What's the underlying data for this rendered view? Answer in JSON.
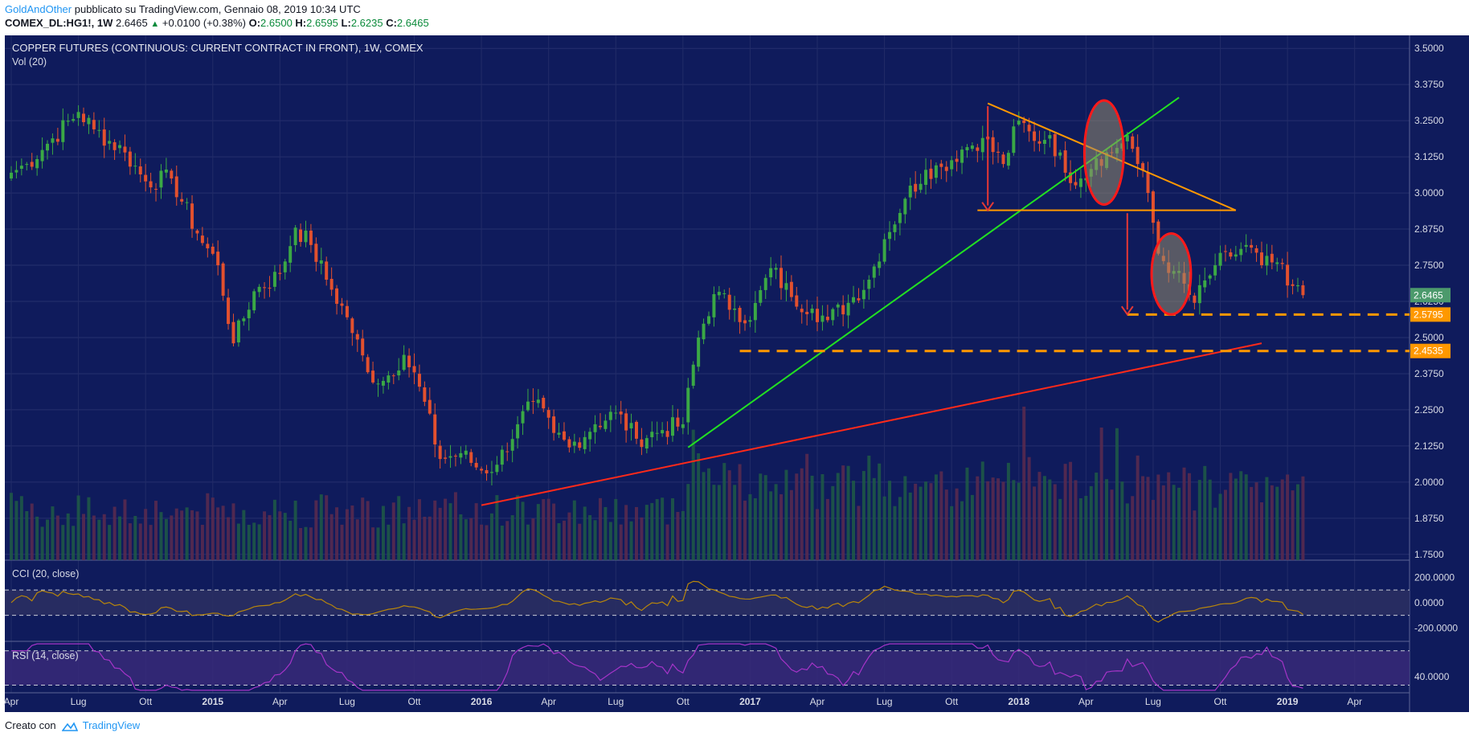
{
  "header": {
    "author": "GoldAndOther",
    "published": "pubblicato su TradingView.com, Gennaio 08, 2019 10:34 UTC",
    "symbol": "COMEX_DL:HG1!, 1W",
    "last": "2.6465",
    "arrow": "▲",
    "change": "+0.0100 (+0.38%)",
    "o_label": "O:",
    "o_value": "2.6500",
    "h_label": "H:",
    "h_value": "2.6595",
    "l_label": "L:",
    "l_value": "2.6235",
    "c_label": "C:",
    "c_value": "2.6465"
  },
  "main_pane": {
    "title": "COPPER FUTURES (CONTINUOUS: CURRENT CONTRACT IN FRONT), 1W, COMEX",
    "volume_label": "Vol (20)"
  },
  "footer": {
    "prefix": "Creato con",
    "brand": "TradingView",
    "logo_icon": "tradingview-logo-icon"
  },
  "colors": {
    "background": "#0f1b5c",
    "up": "#3aa845",
    "down": "#e2502e",
    "support_line": "#ff9800",
    "uptrend_green": "#22e022",
    "uptrend_red": "#ff2a1a",
    "triangle": "#ff9800",
    "cci": "#b8860b",
    "rsi": "#a534c8"
  },
  "chart_data": {
    "type": "candlestick",
    "timeframe": "1W",
    "y_axis": {
      "ticks": [
        "3.5000",
        "3.3750",
        "3.2500",
        "3.1250",
        "3.0000",
        "2.8750",
        "2.7500",
        "2.6250",
        "2.5000",
        "2.3750",
        "2.2500",
        "2.1250",
        "2.0000",
        "1.8750",
        "1.7500"
      ],
      "ylim": [
        1.73,
        3.545
      ]
    },
    "x_axis": {
      "labels": [
        "Apr",
        "Lug",
        "Ott",
        "2015",
        "Apr",
        "Lug",
        "Ott",
        "2016",
        "Apr",
        "Lug",
        "Ott",
        "2017",
        "Apr",
        "Lug",
        "Ott",
        "2018",
        "Apr",
        "Lug",
        "Ott",
        "2019",
        "Apr"
      ],
      "label_weeks": [
        0,
        13,
        26,
        39,
        52,
        65,
        78,
        91,
        104,
        117,
        130,
        143,
        156,
        169,
        182,
        195,
        208,
        221,
        234,
        247,
        260
      ],
      "bold": [
        "2015",
        "2016",
        "2017",
        "2018",
        "2019"
      ],
      "week_range": [
        0,
        270
      ]
    },
    "price_labels": [
      {
        "value": 2.6465,
        "text": "2.6465",
        "color": "#4c9a6c"
      },
      {
        "value": 2.5795,
        "text": "2.5795",
        "color": "#ff9800"
      },
      {
        "value": 2.4535,
        "text": "2.4535",
        "color": "#ff9800"
      }
    ],
    "anchors": [
      [
        0,
        3.07
      ],
      [
        3,
        3.1
      ],
      [
        7,
        3.17
      ],
      [
        13,
        3.28
      ],
      [
        16,
        3.22
      ],
      [
        22,
        3.14
      ],
      [
        26,
        3.04
      ],
      [
        31,
        3.05
      ],
      [
        36,
        2.86
      ],
      [
        40,
        2.75
      ],
      [
        43,
        2.48
      ],
      [
        47,
        2.66
      ],
      [
        52,
        2.72
      ],
      [
        55,
        2.88
      ],
      [
        58,
        2.82
      ],
      [
        61,
        2.7
      ],
      [
        65,
        2.57
      ],
      [
        69,
        2.38
      ],
      [
        72,
        2.35
      ],
      [
        76,
        2.44
      ],
      [
        79,
        2.33
      ],
      [
        83,
        2.08
      ],
      [
        87,
        2.1
      ],
      [
        91,
        2.04
      ],
      [
        94,
        2.06
      ],
      [
        98,
        2.2
      ],
      [
        101,
        2.28
      ],
      [
        105,
        2.17
      ],
      [
        108,
        2.12
      ],
      [
        113,
        2.2
      ],
      [
        117,
        2.24
      ],
      [
        121,
        2.15
      ],
      [
        126,
        2.18
      ],
      [
        130,
        2.2
      ],
      [
        133,
        2.5
      ],
      [
        136,
        2.65
      ],
      [
        140,
        2.6
      ],
      [
        143,
        2.56
      ],
      [
        147,
        2.74
      ],
      [
        151,
        2.64
      ],
      [
        155,
        2.6
      ],
      [
        158,
        2.56
      ],
      [
        162,
        2.62
      ],
      [
        166,
        2.7
      ],
      [
        169,
        2.84
      ],
      [
        173,
        2.98
      ],
      [
        177,
        3.08
      ],
      [
        180,
        3.09
      ],
      [
        184,
        3.15
      ],
      [
        188,
        3.19
      ],
      [
        192,
        3.1
      ],
      [
        195,
        3.25
      ],
      [
        198,
        3.18
      ],
      [
        201,
        3.2
      ],
      [
        204,
        3.07
      ],
      [
        207,
        3.05
      ],
      [
        210,
        3.12
      ],
      [
        213,
        3.14
      ],
      [
        216,
        3.2
      ],
      [
        218,
        3.1
      ],
      [
        220,
        3.0
      ],
      [
        222,
        2.79
      ],
      [
        225,
        2.73
      ],
      [
        229,
        2.62
      ],
      [
        233,
        2.75
      ],
      [
        236,
        2.78
      ],
      [
        239,
        2.82
      ],
      [
        242,
        2.75
      ],
      [
        245,
        2.76
      ],
      [
        247,
        2.68
      ],
      [
        250,
        2.6465
      ]
    ],
    "drawings": {
      "uptrend_green": [
        [
          131,
          2.12
        ],
        [
          226,
          3.33
        ]
      ],
      "uptrend_red": [
        [
          91,
          1.92
        ],
        [
          242,
          2.48
        ]
      ],
      "triangle_top": [
        [
          189,
          3.31
        ],
        [
          237,
          2.94
        ]
      ],
      "triangle_base": [
        [
          187,
          2.94
        ],
        [
          237,
          2.94
        ]
      ],
      "support_1": 2.5795,
      "support_2": 2.4535,
      "support_1_start_week": 216,
      "support_2_start_week": 141,
      "arrows": [
        {
          "week": 189,
          "from": 3.3,
          "to": 2.94
        },
        {
          "week": 216,
          "from": 2.93,
          "to": 2.58
        }
      ],
      "ellipses": [
        {
          "week": 211.5,
          "center": 3.14,
          "rx_weeks": 3.8,
          "ry_price": 0.18
        },
        {
          "week": 224.5,
          "center": 2.72,
          "rx_weeks": 3.8,
          "ry_price": 0.14
        }
      ]
    },
    "volume_pane": {
      "label": "Vol (20)"
    },
    "cci": {
      "label": "CCI (20, close)",
      "levels": [
        100,
        -100
      ],
      "ylim": [
        -300,
        330
      ],
      "ticks": [
        "200.0000",
        "0.0000",
        "-200.0000"
      ]
    },
    "rsi": {
      "label": "RSI (14, close)",
      "levels": [
        70,
        30
      ],
      "ylim": [
        22,
        80
      ],
      "ticks": [
        "40.0000"
      ]
    }
  }
}
